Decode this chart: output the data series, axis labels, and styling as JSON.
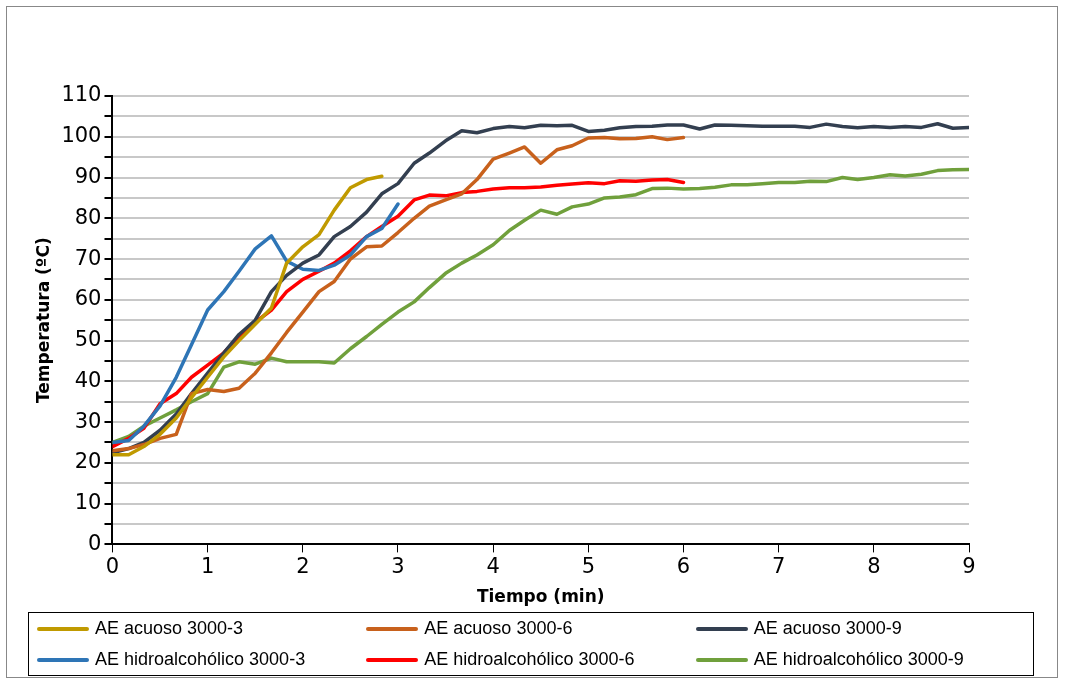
{
  "chart_data": {
    "type": "line",
    "xlabel": "Tiempo (min)",
    "ylabel": "Temperatura (ºC)",
    "xlim": [
      0,
      9
    ],
    "xticks": [
      0,
      1,
      2,
      3,
      4,
      5,
      6,
      7,
      8,
      9
    ],
    "ylim": [
      0,
      110
    ],
    "yticks": [
      0,
      {
        "value": 5,
        "label": null
      },
      10,
      {
        "value": 15,
        "label": null
      },
      20,
      {
        "value": 25,
        "label": null
      },
      30,
      {
        "value": 35,
        "label": null
      },
      40,
      {
        "value": 45,
        "label": null
      },
      50,
      {
        "value": 55,
        "label": null
      },
      60,
      {
        "value": 65,
        "label": null
      },
      70,
      {
        "value": 75,
        "label": null
      },
      80,
      {
        "value": 85,
        "label": null
      },
      90,
      {
        "value": 95,
        "label": null
      },
      100,
      {
        "value": 105,
        "label": null
      },
      110
    ],
    "grid": "y",
    "legend": "bottom",
    "marker": "none",
    "line_style": "solid",
    "series": [
      {
        "name": "AE acuoso 3000-3",
        "color": "#c09a00",
        "x": [
          0,
          0.17,
          0.33,
          0.5,
          0.67,
          0.83,
          1,
          1.17,
          1.33,
          1.5,
          1.67,
          1.83,
          2,
          2.17,
          2.33,
          2.5,
          2.67,
          2.83
        ],
        "values": [
          22,
          22,
          24,
          27,
          31,
          36,
          41,
          46,
          50,
          54,
          58,
          69,
          73,
          76,
          82,
          87.5,
          89.5,
          90.3
        ]
      },
      {
        "name": "AE acuoso 3000-6",
        "color": "#c8611c",
        "x": [
          0,
          0.17,
          0.33,
          0.5,
          0.67,
          0.83,
          1,
          1.17,
          1.33,
          1.5,
          1.67,
          1.83,
          2,
          2.17,
          2.33,
          2.5,
          2.67,
          2.83,
          3,
          3.17,
          3.33,
          3.5,
          3.67,
          3.83,
          4,
          4.17,
          4.33,
          4.5,
          4.67,
          4.83,
          5,
          5.17,
          5.33,
          5.5,
          5.67,
          5.83,
          6
        ],
        "values": [
          23,
          23.5,
          24.5,
          26,
          27,
          37,
          38,
          37.5,
          38.3,
          42,
          47,
          52,
          57,
          62,
          64.5,
          70,
          73,
          73.2,
          76.5,
          80,
          83,
          84.5,
          86,
          89.5,
          94.5,
          96,
          97.5,
          93.5,
          96.8,
          97.8,
          99.7,
          99.8,
          99.5,
          99.6,
          100,
          99.3,
          99.8
        ]
      },
      {
        "name": "AE acuoso 3000-9",
        "color": "#333f50",
        "x": [
          0,
          0.17,
          0.33,
          0.5,
          0.67,
          0.83,
          1,
          1.17,
          1.33,
          1.5,
          1.67,
          1.83,
          2,
          2.17,
          2.33,
          2.5,
          2.67,
          2.83,
          3,
          3.17,
          3.33,
          3.5,
          3.67,
          3.83,
          4,
          4.17,
          4.33,
          4.5,
          4.67,
          4.83,
          5,
          5.17,
          5.33,
          5.5,
          5.67,
          5.83,
          6,
          6.17,
          6.33,
          6.5,
          6.67,
          6.83,
          7,
          7.17,
          7.33,
          7.5,
          7.67,
          7.83,
          8,
          8.17,
          8.33,
          8.5,
          8.67,
          8.83,
          9
        ],
        "values": [
          22.5,
          23.5,
          25,
          28,
          32,
          37,
          42,
          47,
          51.5,
          55,
          62,
          66,
          69,
          71,
          75.5,
          78,
          81.5,
          86,
          88.5,
          93.5,
          96,
          99,
          101.5,
          101,
          102,
          102.5,
          102.2,
          102.8,
          102.7,
          102.8,
          101.3,
          101.6,
          102.2,
          102.5,
          102.6,
          102.9,
          102.9,
          101.9,
          102.9,
          102.8,
          102.7,
          102.6,
          102.6,
          102.6,
          102.3,
          103.1,
          102.5,
          102.2,
          102.5,
          102.3,
          102.5,
          102.3,
          103.2,
          102.1,
          102.3
        ]
      },
      {
        "name": "AE hidroalcohólico 3000-3",
        "color": "#2e75b6",
        "x": [
          0,
          0.17,
          0.33,
          0.5,
          0.67,
          0.83,
          1,
          1.17,
          1.33,
          1.5,
          1.67,
          1.83,
          2,
          2.17,
          2.33,
          2.5,
          2.67,
          2.83,
          3
        ],
        "values": [
          25,
          25.5,
          29,
          34,
          41,
          49,
          57.5,
          62,
          67,
          72.5,
          75.7,
          69.5,
          67.5,
          67.2,
          68.5,
          71,
          75.5,
          77.5,
          83.5
        ]
      },
      {
        "name": "AE hidroalcohólico 3000-6",
        "color": "#ff0000",
        "x": [
          0,
          0.17,
          0.33,
          0.5,
          0.67,
          0.83,
          1,
          1.17,
          1.33,
          1.5,
          1.67,
          1.83,
          2,
          2.17,
          2.33,
          2.5,
          2.67,
          2.83,
          3,
          3.17,
          3.33,
          3.5,
          3.67,
          3.83,
          4,
          4.17,
          4.33,
          4.5,
          4.67,
          4.83,
          5,
          5.17,
          5.33,
          5.5,
          5.67,
          5.83,
          6
        ],
        "values": [
          24,
          26,
          28.5,
          34.5,
          37,
          41,
          44,
          47,
          51,
          54.5,
          57.5,
          62,
          65,
          67,
          69,
          72,
          75.5,
          78,
          80.5,
          84.5,
          85.7,
          85.5,
          86.3,
          86.6,
          87.2,
          87.5,
          87.5,
          87.7,
          88.1,
          88.4,
          88.7,
          88.5,
          89.2,
          89.1,
          89.4,
          89.5,
          88.8
        ]
      },
      {
        "name": "AE hidroalcohólico 3000-9",
        "color": "#70a03c",
        "x": [
          0,
          0.17,
          0.33,
          0.5,
          0.67,
          0.83,
          1,
          1.17,
          1.33,
          1.5,
          1.67,
          1.83,
          2,
          2.17,
          2.33,
          2.5,
          2.67,
          2.83,
          3,
          3.17,
          3.33,
          3.5,
          3.67,
          3.83,
          4,
          4.17,
          4.33,
          4.5,
          4.67,
          4.83,
          5,
          5.17,
          5.33,
          5.5,
          5.67,
          5.83,
          6,
          6.17,
          6.33,
          6.5,
          6.67,
          6.83,
          7,
          7.17,
          7.33,
          7.5,
          7.67,
          7.83,
          8,
          8.17,
          8.33,
          8.5,
          8.67,
          8.83,
          9
        ],
        "values": [
          25,
          26.5,
          29,
          31,
          33,
          35,
          37,
          43.5,
          44.8,
          44.2,
          45.7,
          44.8,
          44.8,
          44.8,
          44.5,
          48,
          51,
          54,
          57,
          59.5,
          63,
          66.5,
          69,
          71,
          73.5,
          77,
          79.5,
          82,
          81,
          82.8,
          83.5,
          85,
          85.2,
          85.8,
          87.3,
          87.4,
          87.2,
          87.3,
          87.6,
          88.2,
          88.2,
          88.5,
          88.8,
          88.8,
          89.1,
          89,
          90,
          89.5,
          90,
          90.7,
          90.4,
          90.8,
          91.7,
          91.9,
          92
        ]
      }
    ]
  }
}
